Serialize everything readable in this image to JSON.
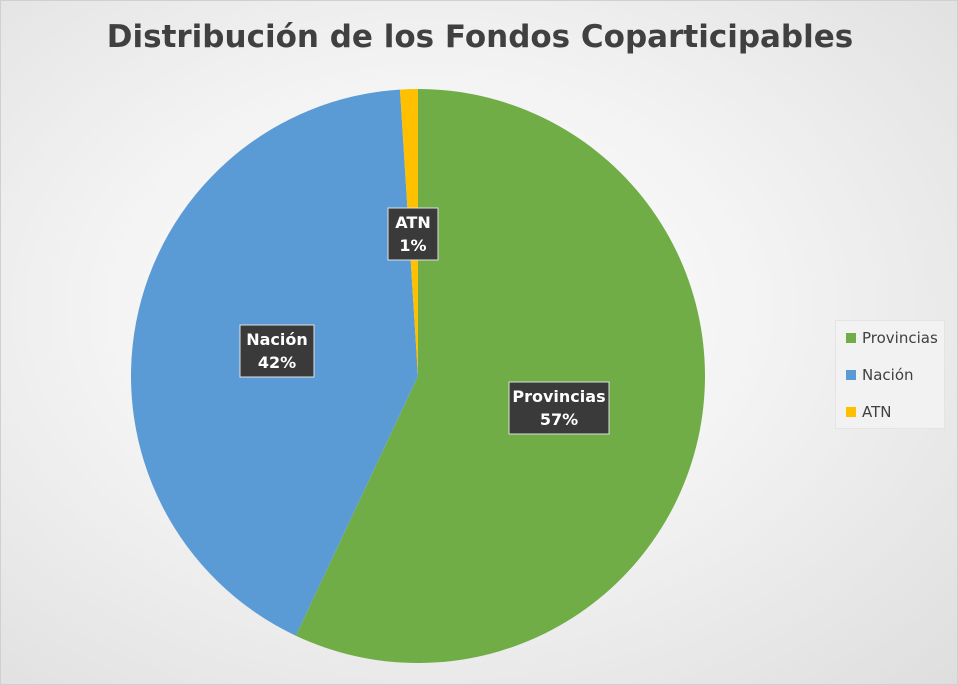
{
  "chart_data": {
    "type": "pie",
    "title": "Distribución de los Fondos Coparticipables",
    "slices": [
      {
        "name": "Provincias",
        "value": 57,
        "label": "57%",
        "color": "#70AD47"
      },
      {
        "name": "Nación",
        "value": 42,
        "label": "42%",
        "color": "#5B9BD5"
      },
      {
        "name": "ATN",
        "value": 1,
        "label": "1%",
        "color": "#FFC000"
      }
    ],
    "legend": {
      "position": "right",
      "entries": [
        "Provincias",
        "Nación",
        "ATN"
      ]
    }
  }
}
